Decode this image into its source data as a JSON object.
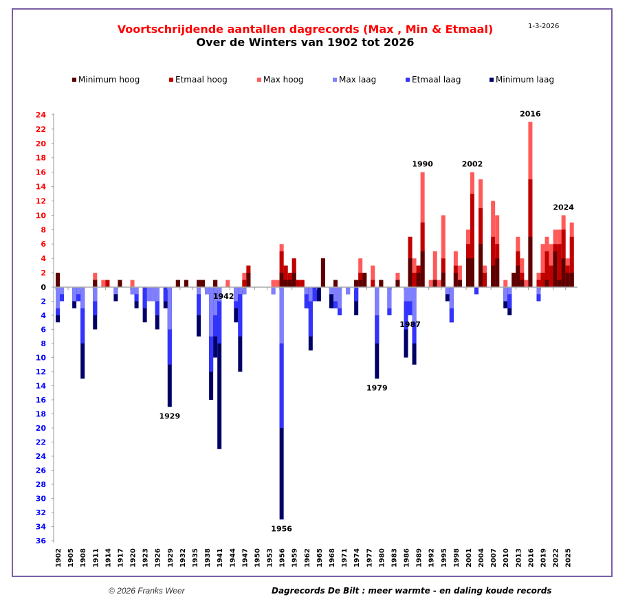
{
  "header": {
    "title": "Voortschrijdende aantallen dagrecords (Max , Min & Etmaal)",
    "subtitle": "Over de Winters van 1902 tot 2026",
    "date": "1-3-2026"
  },
  "footer": {
    "copyright": "© 2026 Franks Weer",
    "caption": "Dagrecords De Bilt :  meer warmte - en daling koude records"
  },
  "chart_data": {
    "type": "bar",
    "title": "Voortschrijdende aantallen dagrecords (Max , Min & Etmaal)",
    "subtitle": "Over de Winters van 1902 tot 2026",
    "xlabel": "",
    "ylabel": "",
    "ylim": [
      -36,
      24
    ],
    "y_ticks_positive": [
      24,
      22,
      20,
      18,
      16,
      14,
      12,
      10,
      8,
      6,
      4,
      2,
      0
    ],
    "y_ticks_negative": [
      2,
      4,
      6,
      8,
      10,
      12,
      14,
      16,
      18,
      20,
      22,
      24,
      26,
      28,
      30,
      32,
      34,
      36
    ],
    "x_tick_labels": [
      "1902",
      "1905",
      "1908",
      "1911",
      "1914",
      "1917",
      "1920",
      "1923",
      "1926",
      "1929",
      "1932",
      "1935",
      "1938",
      "1941",
      "1944",
      "1947",
      "1950",
      "1953",
      "1956",
      "1959",
      "1962",
      "1965",
      "1968",
      "1971",
      "1974",
      "1977",
      "1980",
      "1983",
      "1986",
      "1989",
      "1992",
      "1995",
      "1998",
      "2001",
      "2004",
      "2007",
      "2010",
      "2013",
      "2016",
      "2019",
      "2022",
      "2025"
    ],
    "legend_position": "top",
    "legend": [
      {
        "name": "Minimum hoog",
        "color": "#5c0000"
      },
      {
        "name": "Etmaal hoog",
        "color": "#c00000"
      },
      {
        "name": "Max hoog",
        "color": "#ff5a5a"
      },
      {
        "name": "Max laag",
        "color": "#8080ff"
      },
      {
        "name": "Etmaal laag",
        "color": "#3333ff"
      },
      {
        "name": "Minimum laag",
        "color": "#000066"
      }
    ],
    "note": "Values per winter: warm = [minimum_hoog, etmaal_hoog, max_hoog] cumulative stack tops; cold = [max_laag, etmaal_laag, minimum_laag] cumulative stack depths. Approximate readings.",
    "annotations": [
      {
        "year": 1929,
        "text": "1929",
        "side": "below"
      },
      {
        "year": 1942,
        "text": "1942",
        "side": "below"
      },
      {
        "year": 1956,
        "text": "1956",
        "side": "below"
      },
      {
        "year": 1979,
        "text": "1979",
        "side": "below"
      },
      {
        "year": 1987,
        "text": "1987",
        "side": "below"
      },
      {
        "year": 1990,
        "text": "1990",
        "side": "above"
      },
      {
        "year": 2002,
        "text": "2002",
        "side": "above"
      },
      {
        "year": 2016,
        "text": "2016",
        "side": "above"
      },
      {
        "year": 2024,
        "text": "2024",
        "side": "above"
      }
    ],
    "series_years": [
      1902,
      1903,
      1904,
      1905,
      1906,
      1907,
      1908,
      1909,
      1910,
      1911,
      1912,
      1913,
      1914,
      1915,
      1916,
      1917,
      1918,
      1919,
      1920,
      1921,
      1922,
      1923,
      1924,
      1925,
      1926,
      1927,
      1928,
      1929,
      1930,
      1931,
      1932,
      1933,
      1934,
      1935,
      1936,
      1937,
      1938,
      1939,
      1940,
      1941,
      1942,
      1943,
      1944,
      1945,
      1946,
      1947,
      1948,
      1949,
      1950,
      1951,
      1952,
      1953,
      1954,
      1955,
      1956,
      1957,
      1958,
      1959,
      1960,
      1961,
      1962,
      1963,
      1964,
      1965,
      1966,
      1967,
      1968,
      1969,
      1970,
      1971,
      1972,
      1973,
      1974,
      1975,
      1976,
      1977,
      1978,
      1979,
      1980,
      1981,
      1982,
      1983,
      1984,
      1985,
      1986,
      1987,
      1988,
      1989,
      1990,
      1991,
      1992,
      1993,
      1994,
      1995,
      1996,
      1997,
      1998,
      1999,
      2000,
      2001,
      2002,
      2003,
      2004,
      2005,
      2006,
      2007,
      2008,
      2009,
      2010,
      2011,
      2012,
      2013,
      2014,
      2015,
      2016,
      2017,
      2018,
      2019,
      2020,
      2021,
      2022,
      2023,
      2024,
      2025,
      2026
    ],
    "warm": [
      [
        2,
        2,
        2
      ],
      [
        0,
        0,
        0
      ],
      [
        0,
        0,
        0
      ],
      [
        0,
        0,
        0
      ],
      [
        0,
        0,
        0
      ],
      [
        0,
        0,
        0
      ],
      [
        0,
        0,
        0
      ],
      [
        0,
        0,
        0
      ],
      [
        0,
        0,
        0
      ],
      [
        1,
        1,
        2
      ],
      [
        0,
        0,
        0
      ],
      [
        0,
        0,
        1
      ],
      [
        0,
        1,
        1
      ],
      [
        0,
        0,
        0
      ],
      [
        0,
        0,
        0
      ],
      [
        1,
        1,
        1
      ],
      [
        0,
        0,
        0
      ],
      [
        0,
        0,
        0
      ],
      [
        0,
        0,
        1
      ],
      [
        0,
        0,
        0
      ],
      [
        0,
        0,
        0
      ],
      [
        0,
        0,
        0
      ],
      [
        0,
        0,
        0
      ],
      [
        0,
        0,
        0
      ],
      [
        0,
        0,
        0
      ],
      [
        0,
        0,
        0
      ],
      [
        0,
        0,
        0
      ],
      [
        0,
        0,
        0
      ],
      [
        0,
        0,
        0
      ],
      [
        1,
        1,
        1
      ],
      [
        0,
        0,
        0
      ],
      [
        1,
        1,
        1
      ],
      [
        0,
        0,
        0
      ],
      [
        0,
        0,
        0
      ],
      [
        1,
        1,
        1
      ],
      [
        1,
        1,
        1
      ],
      [
        0,
        0,
        0
      ],
      [
        0,
        0,
        0
      ],
      [
        1,
        1,
        1
      ],
      [
        0,
        0,
        0
      ],
      [
        0,
        0,
        0
      ],
      [
        0,
        0,
        1
      ],
      [
        0,
        0,
        0
      ],
      [
        0,
        0,
        0
      ],
      [
        0,
        0,
        0
      ],
      [
        0,
        1,
        2
      ],
      [
        2,
        3,
        3
      ],
      [
        0,
        0,
        0
      ],
      [
        0,
        0,
        0
      ],
      [
        0,
        0,
        0
      ],
      [
        0,
        0,
        0
      ],
      [
        0,
        0,
        0
      ],
      [
        0,
        0,
        1
      ],
      [
        0,
        0,
        1
      ],
      [
        2,
        5,
        6
      ],
      [
        1,
        3,
        3
      ],
      [
        1,
        2,
        2
      ],
      [
        2,
        4,
        4
      ],
      [
        0,
        1,
        1
      ],
      [
        0,
        1,
        1
      ],
      [
        0,
        0,
        0
      ],
      [
        0,
        0,
        0
      ],
      [
        0,
        0,
        0
      ],
      [
        0,
        0,
        0
      ],
      [
        4,
        4,
        4
      ],
      [
        0,
        0,
        0
      ],
      [
        0,
        0,
        0
      ],
      [
        1,
        1,
        1
      ],
      [
        0,
        0,
        0
      ],
      [
        0,
        0,
        0
      ],
      [
        0,
        0,
        0
      ],
      [
        0,
        0,
        0
      ],
      [
        1,
        1,
        1
      ],
      [
        1,
        2,
        4
      ],
      [
        2,
        2,
        2
      ],
      [
        0,
        0,
        0
      ],
      [
        0,
        1,
        3
      ],
      [
        0,
        0,
        0
      ],
      [
        1,
        1,
        1
      ],
      [
        0,
        0,
        0
      ],
      [
        0,
        0,
        0
      ],
      [
        0,
        0,
        0
      ],
      [
        1,
        1,
        2
      ],
      [
        0,
        0,
        0
      ],
      [
        0,
        0,
        0
      ],
      [
        4,
        7,
        7
      ],
      [
        0,
        2,
        4
      ],
      [
        2,
        3,
        3
      ],
      [
        5,
        9,
        16
      ],
      [
        0,
        0,
        0
      ],
      [
        0,
        0,
        1
      ],
      [
        1,
        1,
        5
      ],
      [
        0,
        0,
        1
      ],
      [
        2,
        4,
        10
      ],
      [
        0,
        0,
        0
      ],
      [
        0,
        0,
        0
      ],
      [
        2,
        3,
        5
      ],
      [
        1,
        1,
        3
      ],
      [
        0,
        0,
        0
      ],
      [
        4,
        6,
        8
      ],
      [
        4,
        13,
        16
      ],
      [
        0,
        0,
        0
      ],
      [
        6,
        11,
        15
      ],
      [
        0,
        2,
        3
      ],
      [
        0,
        0,
        0
      ],
      [
        3,
        7,
        12
      ],
      [
        4,
        6,
        10
      ],
      [
        0,
        0,
        0
      ],
      [
        0,
        0,
        1
      ],
      [
        0,
        0,
        0
      ],
      [
        2,
        2,
        2
      ],
      [
        3,
        5,
        7
      ],
      [
        1,
        2,
        4
      ],
      [
        0,
        0,
        1
      ],
      [
        7,
        15,
        23
      ],
      [
        0,
        0,
        0
      ],
      [
        0,
        1,
        2
      ],
      [
        0,
        2,
        6
      ],
      [
        1,
        5,
        7
      ],
      [
        0,
        3,
        6
      ],
      [
        5,
        6,
        8
      ],
      [
        1,
        6,
        8
      ],
      [
        4,
        8,
        10
      ],
      [
        2,
        3,
        4
      ],
      [
        2,
        7,
        9
      ]
    ],
    "cold": [
      [
        3,
        4,
        5
      ],
      [
        1,
        2,
        2
      ],
      [
        0,
        0,
        0
      ],
      [
        0,
        0,
        0
      ],
      [
        2,
        2,
        3
      ],
      [
        1,
        2,
        2
      ],
      [
        3,
        8,
        13
      ],
      [
        0,
        0,
        0
      ],
      [
        0,
        0,
        0
      ],
      [
        2,
        4,
        6
      ],
      [
        0,
        0,
        0
      ],
      [
        0,
        0,
        0
      ],
      [
        0,
        0,
        0
      ],
      [
        0,
        0,
        0
      ],
      [
        1,
        1,
        2
      ],
      [
        0,
        0,
        0
      ],
      [
        0,
        0,
        0
      ],
      [
        0,
        0,
        0
      ],
      [
        1,
        1,
        1
      ],
      [
        1,
        2,
        3
      ],
      [
        0,
        0,
        0
      ],
      [
        0,
        3,
        5
      ],
      [
        2,
        2,
        2
      ],
      [
        2,
        2,
        2
      ],
      [
        2,
        4,
        6
      ],
      [
        0,
        0,
        0
      ],
      [
        0,
        2,
        3
      ],
      [
        6,
        11,
        17
      ],
      [
        0,
        0,
        0
      ],
      [
        0,
        0,
        0
      ],
      [
        0,
        0,
        0
      ],
      [
        0,
        0,
        0
      ],
      [
        0,
        0,
        0
      ],
      [
        0,
        0,
        0
      ],
      [
        1,
        4,
        7
      ],
      [
        0,
        0,
        0
      ],
      [
        1,
        1,
        1
      ],
      [
        7,
        12,
        16
      ],
      [
        4,
        7,
        10
      ],
      [
        2,
        8,
        23
      ],
      [
        0,
        0,
        0
      ],
      [
        0,
        0,
        0
      ],
      [
        0,
        0,
        0
      ],
      [
        2,
        3,
        5
      ],
      [
        1,
        7,
        12
      ],
      [
        1,
        1,
        1
      ],
      [
        0,
        0,
        0
      ],
      [
        0,
        0,
        0
      ],
      [
        0,
        0,
        0
      ],
      [
        0,
        0,
        0
      ],
      [
        0,
        0,
        0
      ],
      [
        0,
        0,
        0
      ],
      [
        1,
        1,
        1
      ],
      [
        0,
        0,
        0
      ],
      [
        8,
        20,
        33
      ],
      [
        0,
        0,
        0
      ],
      [
        0,
        0,
        0
      ],
      [
        0,
        0,
        0
      ],
      [
        0,
        0,
        0
      ],
      [
        0,
        0,
        0
      ],
      [
        1,
        3,
        3
      ],
      [
        2,
        7,
        9
      ],
      [
        0,
        2,
        2
      ],
      [
        0,
        0,
        2
      ],
      [
        0,
        0,
        0
      ],
      [
        0,
        0,
        0
      ],
      [
        1,
        1,
        3
      ],
      [
        2,
        3,
        3
      ],
      [
        3,
        4,
        4
      ],
      [
        0,
        0,
        0
      ],
      [
        1,
        1,
        1
      ],
      [
        0,
        0,
        0
      ],
      [
        0,
        2,
        4
      ],
      [
        0,
        0,
        0
      ],
      [
        0,
        0,
        0
      ],
      [
        0,
        0,
        0
      ],
      [
        0,
        0,
        0
      ],
      [
        4,
        8,
        13
      ],
      [
        0,
        0,
        0
      ],
      [
        0,
        0,
        0
      ],
      [
        3,
        4,
        4
      ],
      [
        0,
        0,
        0
      ],
      [
        0,
        0,
        0
      ],
      [
        0,
        0,
        0
      ],
      [
        2,
        6,
        10
      ],
      [
        2,
        4,
        4
      ],
      [
        5,
        8,
        11
      ],
      [
        0,
        0,
        0
      ],
      [
        0,
        0,
        0
      ],
      [
        0,
        0,
        0
      ],
      [
        0,
        0,
        0
      ],
      [
        0,
        0,
        0
      ],
      [
        0,
        0,
        0
      ],
      [
        0,
        0,
        0
      ],
      [
        1,
        1,
        2
      ],
      [
        3,
        5,
        5
      ],
      [
        0,
        0,
        0
      ],
      [
        0,
        0,
        0
      ],
      [
        0,
        0,
        0
      ],
      [
        0,
        0,
        0
      ],
      [
        0,
        0,
        0
      ],
      [
        0,
        1,
        1
      ],
      [
        0,
        0,
        0
      ],
      [
        0,
        0,
        0
      ],
      [
        0,
        0,
        0
      ],
      [
        0,
        0,
        0
      ],
      [
        0,
        0,
        0
      ],
      [
        0,
        0,
        0
      ],
      [
        2,
        2,
        3
      ],
      [
        1,
        3,
        4
      ],
      [
        0,
        0,
        0
      ],
      [
        0,
        0,
        0
      ],
      [
        0,
        0,
        0
      ],
      [
        0,
        0,
        0
      ],
      [
        0,
        0,
        0
      ],
      [
        0,
        0,
        0
      ],
      [
        1,
        2,
        2
      ],
      [
        0,
        0,
        0
      ],
      [
        0,
        0,
        0
      ],
      [
        0,
        0,
        0
      ],
      [
        0,
        0,
        0
      ],
      [
        0,
        0,
        0
      ],
      [
        0,
        0,
        0
      ],
      [
        0,
        0,
        0
      ],
      [
        0,
        0,
        0
      ]
    ]
  }
}
